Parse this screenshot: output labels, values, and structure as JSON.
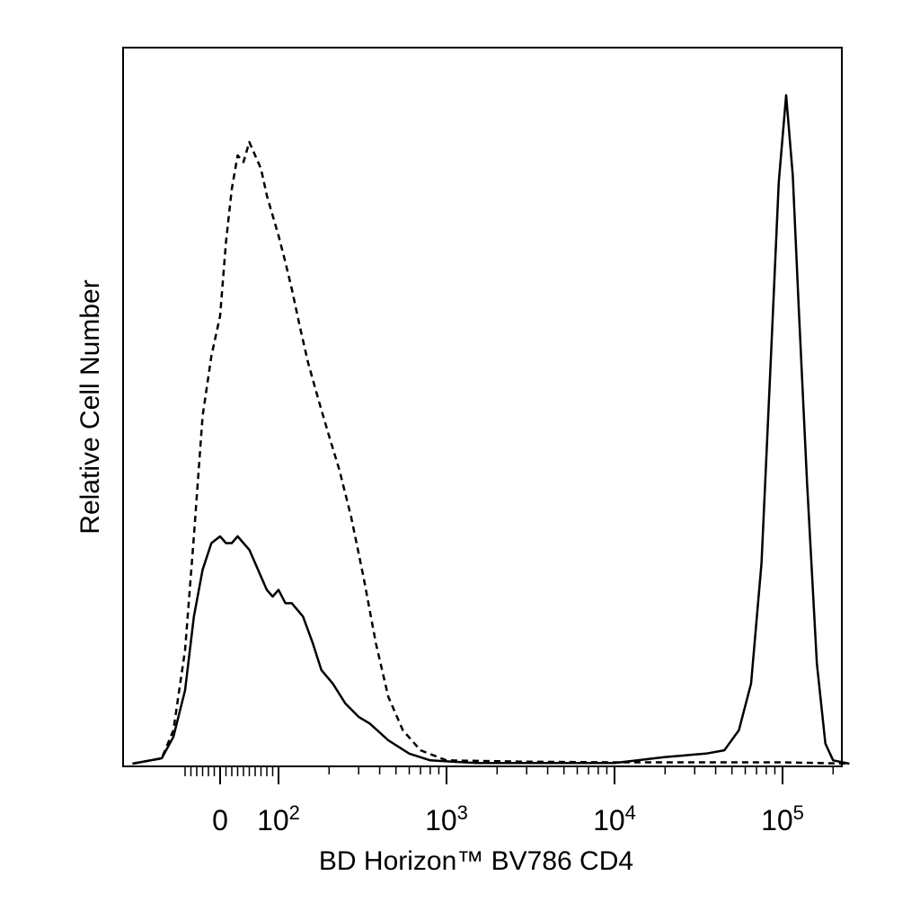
{
  "chart_data": {
    "type": "line",
    "xlabel": "BD Horizon™ BV786 CD4",
    "ylabel": "Relative Cell Number",
    "x_scale": "biexponential",
    "x_ticks": [
      {
        "value": 0,
        "label": "0"
      },
      {
        "value": 100,
        "label": "10",
        "exp": "2"
      },
      {
        "value": 1000,
        "label": "10",
        "exp": "3"
      },
      {
        "value": 10000,
        "label": "10",
        "exp": "4"
      },
      {
        "value": 100000,
        "label": "10",
        "exp": "5"
      }
    ],
    "xlim": [
      -150,
      250000
    ],
    "ylim": [
      0,
      100
    ],
    "grid": false,
    "series": [
      {
        "style": "dashed",
        "points": [
          [
            -150,
            0
          ],
          [
            -100,
            0.8
          ],
          [
            -80,
            5
          ],
          [
            -60,
            17
          ],
          [
            -45,
            34
          ],
          [
            -30,
            52
          ],
          [
            -15,
            61
          ],
          [
            0,
            67
          ],
          [
            10,
            78
          ],
          [
            20,
            86
          ],
          [
            30,
            91
          ],
          [
            40,
            90
          ],
          [
            50,
            93
          ],
          [
            60,
            91
          ],
          [
            70,
            89
          ],
          [
            80,
            85
          ],
          [
            90,
            82
          ],
          [
            100,
            79
          ],
          [
            110,
            75
          ],
          [
            120,
            71
          ],
          [
            135,
            65
          ],
          [
            150,
            60
          ],
          [
            175,
            54
          ],
          [
            200,
            49
          ],
          [
            230,
            44
          ],
          [
            270,
            37
          ],
          [
            320,
            28
          ],
          [
            380,
            18
          ],
          [
            450,
            10
          ],
          [
            550,
            5
          ],
          [
            700,
            2
          ],
          [
            1000,
            0.5
          ],
          [
            3000,
            0.3
          ],
          [
            10000,
            0.2
          ],
          [
            100000,
            0.2
          ],
          [
            250000,
            0
          ]
        ]
      },
      {
        "style": "solid",
        "points": [
          [
            -150,
            0
          ],
          [
            -100,
            0.8
          ],
          [
            -80,
            4
          ],
          [
            -60,
            11
          ],
          [
            -45,
            22
          ],
          [
            -30,
            29
          ],
          [
            -15,
            33
          ],
          [
            0,
            34
          ],
          [
            10,
            33
          ],
          [
            20,
            33
          ],
          [
            30,
            34
          ],
          [
            40,
            33
          ],
          [
            50,
            32
          ],
          [
            60,
            30
          ],
          [
            70,
            28
          ],
          [
            80,
            26
          ],
          [
            90,
            25
          ],
          [
            100,
            26
          ],
          [
            110,
            24
          ],
          [
            120,
            24
          ],
          [
            140,
            22
          ],
          [
            160,
            18
          ],
          [
            180,
            14
          ],
          [
            210,
            12
          ],
          [
            250,
            9
          ],
          [
            300,
            7
          ],
          [
            350,
            6
          ],
          [
            450,
            3.5
          ],
          [
            600,
            1.5
          ],
          [
            800,
            0.5
          ],
          [
            1500,
            0.1
          ],
          [
            10000,
            0.1
          ],
          [
            20000,
            1
          ],
          [
            35000,
            1.5
          ],
          [
            45000,
            2
          ],
          [
            55000,
            5
          ],
          [
            65000,
            12
          ],
          [
            75000,
            30
          ],
          [
            85000,
            60
          ],
          [
            95000,
            87
          ],
          [
            105000,
            100
          ],
          [
            115000,
            88
          ],
          [
            125000,
            68
          ],
          [
            140000,
            42
          ],
          [
            160000,
            15
          ],
          [
            180000,
            3
          ],
          [
            200000,
            0.5
          ],
          [
            250000,
            0
          ]
        ]
      }
    ]
  }
}
